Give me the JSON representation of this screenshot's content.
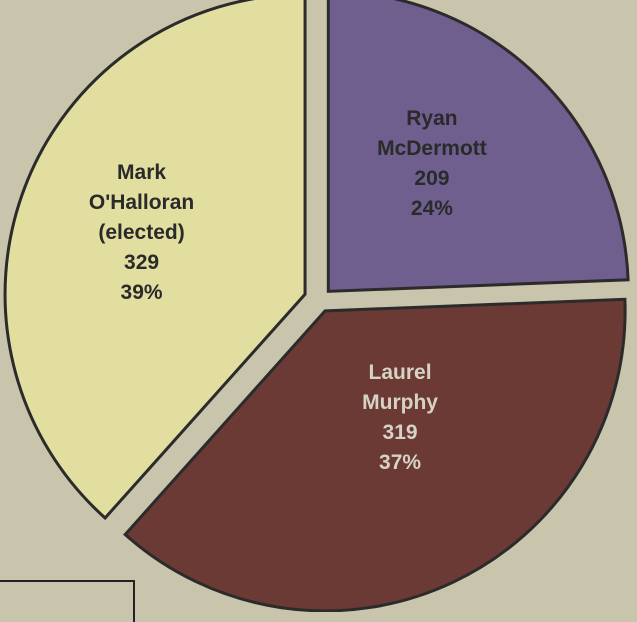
{
  "colors": {
    "background": "#c9c5ad",
    "mark": "#e2dea0",
    "laurel": "#6b3a34",
    "ryan": "#6f5f8f",
    "outline": "#2b2b2b"
  },
  "chart_data": {
    "type": "pie",
    "slices": [
      {
        "name_lines": [
          "Mark",
          "O'Halloran",
          "(elected)"
        ],
        "value": 329,
        "value_label": "329",
        "percent_label": "39%",
        "color": "#e2dea0"
      },
      {
        "name_lines": [
          "Laurel",
          "Murphy"
        ],
        "value": 319,
        "value_label": "319",
        "percent_label": "37%",
        "color": "#6b3a34"
      },
      {
        "name_lines": [
          "Ryan",
          "McDermott"
        ],
        "value": 209,
        "value_label": "209",
        "percent_label": "24%",
        "color": "#6f5f8f"
      }
    ]
  }
}
